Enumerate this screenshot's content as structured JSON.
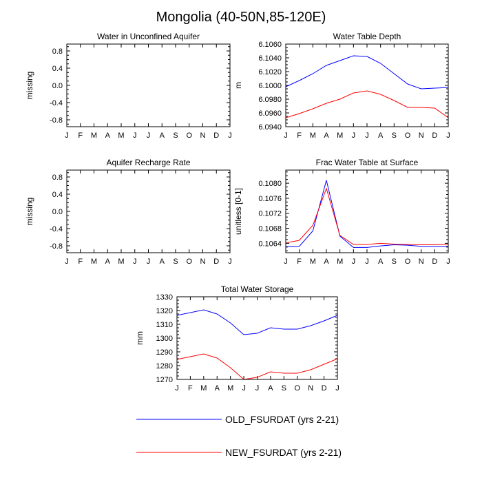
{
  "figure_title": "Mongolia (40-50N,85-120E)",
  "legend": [
    {
      "name": "OLD_FSURDAT (yrs 2-21)",
      "color": "#0000ff"
    },
    {
      "name": "NEW_FSURDAT (yrs 2-21)",
      "color": "#ff0000"
    }
  ],
  "chart_data": [
    {
      "type": "line",
      "title": "Water in Unconfined Aquifer",
      "xlabel": "",
      "ylabel": "missing",
      "categories": [
        "J",
        "F",
        "M",
        "A",
        "M",
        "J",
        "J",
        "A",
        "S",
        "O",
        "N",
        "D",
        "J"
      ],
      "ylim": [
        -0.96,
        0.96
      ],
      "yticks": [
        -0.8,
        -0.4,
        0.0,
        0.4,
        0.8
      ],
      "ytick_labels": [
        "-0.8",
        "-0.4",
        "0.0",
        "0.4",
        "0.8"
      ],
      "series": []
    },
    {
      "type": "line",
      "title": "Water Table Depth",
      "xlabel": "",
      "ylabel": "m",
      "categories": [
        "J",
        "F",
        "M",
        "A",
        "M",
        "J",
        "J",
        "A",
        "S",
        "O",
        "N",
        "D",
        "J"
      ],
      "ylim": [
        6.094,
        6.106
      ],
      "yticks": [
        6.094,
        6.096,
        6.098,
        6.1,
        6.102,
        6.104,
        6.106
      ],
      "ytick_labels": [
        "6.0940",
        "6.0960",
        "6.0980",
        "6.1000",
        "6.1020",
        "6.1040",
        "6.1060"
      ],
      "series": [
        {
          "name": "OLD_FSURDAT (yrs 2-21)",
          "color": "#0000ff",
          "values": [
            6.0998,
            6.1007,
            6.1017,
            6.1029,
            6.1036,
            6.1043,
            6.1042,
            6.1032,
            6.1017,
            6.1002,
            6.0995,
            6.0996,
            6.0997
          ]
        },
        {
          "name": "NEW_FSURDAT (yrs 2-21)",
          "color": "#ff0000",
          "values": [
            6.0953,
            6.0959,
            6.0966,
            6.0974,
            6.098,
            6.0989,
            6.0992,
            6.0987,
            6.0978,
            6.0968,
            6.0968,
            6.0967,
            6.0953
          ]
        }
      ]
    },
    {
      "type": "line",
      "title": "Aquifer Recharge Rate",
      "xlabel": "",
      "ylabel": "missing",
      "categories": [
        "J",
        "F",
        "M",
        "A",
        "M",
        "J",
        "J",
        "A",
        "S",
        "O",
        "N",
        "D",
        "J"
      ],
      "ylim": [
        -0.96,
        0.96
      ],
      "yticks": [
        -0.8,
        -0.4,
        0.0,
        0.4,
        0.8
      ],
      "ytick_labels": [
        "-0.8",
        "-0.4",
        "0.0",
        "0.4",
        "0.8"
      ],
      "series": []
    },
    {
      "type": "line",
      "title": "Frac Water Table at Surface",
      "xlabel": "",
      "ylabel": "unitless [0-1]",
      "categories": [
        "J",
        "F",
        "M",
        "A",
        "M",
        "J",
        "J",
        "A",
        "S",
        "O",
        "N",
        "D",
        "J"
      ],
      "ylim": [
        0.10615,
        0.10835
      ],
      "yticks": [
        0.1064,
        0.1068,
        0.1072,
        0.1076,
        0.108
      ],
      "ytick_labels": [
        "0.1064",
        "0.1068",
        "0.1072",
        "0.1076",
        "0.1080"
      ],
      "series": [
        {
          "name": "OLD_FSURDAT (yrs 2-21)",
          "color": "#0000ff",
          "values": [
            0.10631,
            0.10632,
            0.10673,
            0.10808,
            0.10659,
            0.10629,
            0.10629,
            0.10633,
            0.10636,
            0.10635,
            0.10632,
            0.10632,
            0.10632
          ]
        },
        {
          "name": "NEW_FSURDAT (yrs 2-21)",
          "color": "#ff0000",
          "values": [
            0.10641,
            0.10648,
            0.10688,
            0.10786,
            0.10661,
            0.10637,
            0.10637,
            0.1064,
            0.10638,
            0.10637,
            0.10636,
            0.10636,
            0.10638
          ]
        }
      ]
    },
    {
      "type": "line",
      "title": "Total Water Storage",
      "xlabel": "",
      "ylabel": "mm",
      "categories": [
        "J",
        "F",
        "M",
        "A",
        "M",
        "J",
        "J",
        "A",
        "S",
        "O",
        "N",
        "D",
        "J"
      ],
      "ylim": [
        1270,
        1330
      ],
      "yticks": [
        1270,
        1280,
        1290,
        1300,
        1310,
        1320,
        1330
      ],
      "ytick_labels": [
        "1270",
        "1280",
        "1290",
        "1300",
        "1310",
        "1320",
        "1330"
      ],
      "series": [
        {
          "name": "OLD_FSURDAT (yrs 2-21)",
          "color": "#0000ff",
          "values": [
            1316.5,
            1318.5,
            1320.5,
            1317.5,
            1311,
            1302.5,
            1303.5,
            1307.5,
            1306.5,
            1306.5,
            1309,
            1312.5,
            1316.5
          ]
        },
        {
          "name": "NEW_FSURDAT (yrs 2-21)",
          "color": "#ff0000",
          "values": [
            1284.5,
            1286.5,
            1288.5,
            1285.5,
            1278.5,
            1270,
            1271.5,
            1275.5,
            1274.5,
            1274.5,
            1277,
            1281,
            1285
          ]
        }
      ]
    }
  ]
}
